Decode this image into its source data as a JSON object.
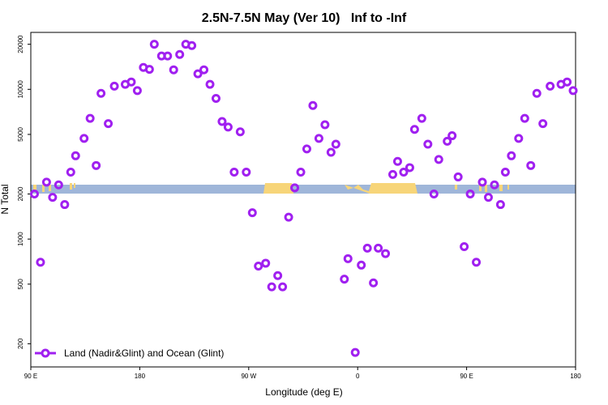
{
  "chart_data": {
    "type": "scatter",
    "title": "2.5N-7.5N May (Ver 10)   Inf to -Inf",
    "x_label": "Longitude (deg E)",
    "y_label": "N Total",
    "log_y": true,
    "legend": "bottom-left",
    "xlim": [
      90,
      540
    ],
    "xticks": [
      {
        "value": 90,
        "label": "90 E"
      },
      180,
      {
        "value": 270,
        "label": "90 W"
      },
      {
        "value": 360,
        "label": "0"
      },
      {
        "value": 450,
        "label": "90 E"
      },
      {
        "value": 540,
        "label": "180"
      }
    ],
    "ylim": [
      140,
      24000
    ],
    "yticks": [
      200,
      500,
      1000,
      2000,
      5000,
      10000,
      20000
    ],
    "series": [
      {
        "name": "Land (Nadir&Glint) and Ocean (Glint)",
        "color": "#a020f0",
        "x": [
          93,
          98,
          103,
          108,
          113,
          118,
          123,
          127,
          134,
          139,
          144,
          148,
          154,
          159,
          168,
          173,
          178,
          183,
          188,
          192,
          198,
          203,
          208,
          213,
          218,
          223,
          228,
          233,
          238,
          243,
          248,
          253,
          258,
          263,
          268,
          273,
          278,
          284,
          289,
          294,
          298,
          303,
          308,
          313,
          318,
          323,
          328,
          333,
          338,
          342,
          349,
          352,
          358,
          363,
          368,
          373,
          377,
          383,
          389,
          393,
          398,
          403,
          407,
          413,
          418,
          423,
          427,
          434,
          438,
          443,
          448,
          453,
          458,
          463,
          468,
          473,
          478,
          482,
          487,
          493,
          498,
          503,
          508,
          513,
          519,
          528,
          533,
          538
        ],
        "values": [
          2000,
          700,
          2400,
          1900,
          2300,
          1700,
          2800,
          3600,
          4700,
          6400,
          3100,
          9400,
          5900,
          10500,
          10800,
          11200,
          9800,
          14000,
          13600,
          20000,
          16700,
          16700,
          13500,
          17100,
          20000,
          19600,
          12700,
          13500,
          10800,
          8700,
          6100,
          5600,
          2800,
          5200,
          2800,
          1500,
          660,
          690,
          480,
          570,
          480,
          1400,
          2200,
          2800,
          4000,
          7800,
          4700,
          5800,
          3800,
          4300,
          540,
          740,
          175,
          670,
          870,
          510,
          870,
          800,
          2700,
          3300,
          2800,
          3000,
          5400,
          6400,
          4300,
          2000,
          3400,
          4500,
          4900,
          2600,
          890,
          2000,
          700,
          2400,
          1900,
          2300,
          1700,
          2800,
          3600,
          4700,
          6400,
          3100,
          9400,
          5900,
          10500,
          10800,
          11200,
          9800
        ]
      }
    ]
  }
}
